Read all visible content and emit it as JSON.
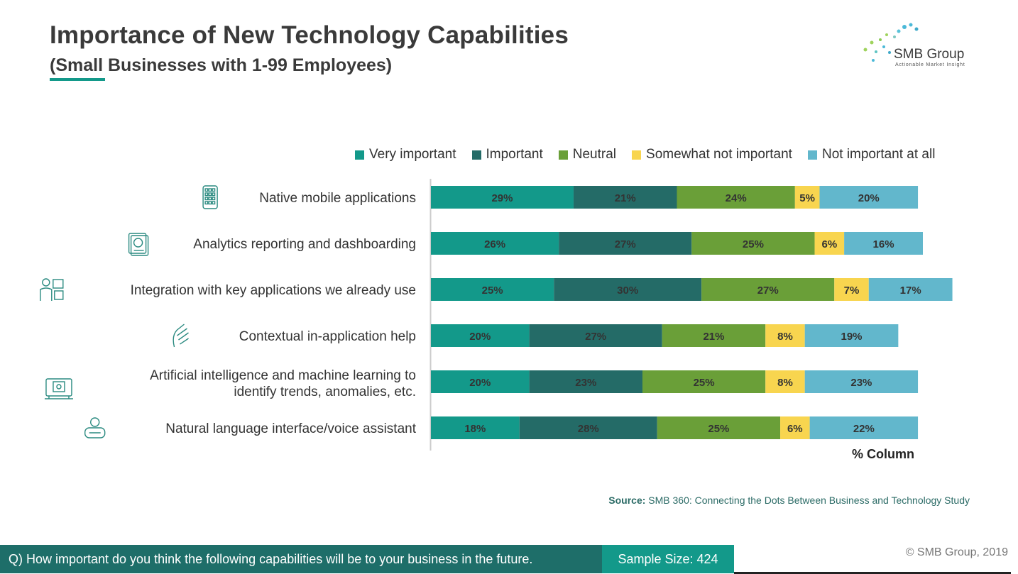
{
  "header": {
    "title": "Importance of New Technology Capabilities",
    "subtitle": "(Small Businesses with 1-99 Employees)"
  },
  "logo": {
    "name": "SMB Group",
    "tagline": "Actionable Market Insight"
  },
  "colors": {
    "very_important": "#13998a",
    "important": "#246b67",
    "neutral": "#6a9f38",
    "somewhat_not_important": "#f8d54f",
    "not_important_at_all": "#62b7cc",
    "accent": "#13998a"
  },
  "chart_data": {
    "type": "bar",
    "orientation": "horizontal",
    "stacked": true,
    "categories": [
      [
        "Native mobile applications"
      ],
      [
        "Analytics reporting and dashboarding"
      ],
      [
        "Integration with key applications we already use"
      ],
      [
        "Contextual in-application help"
      ],
      [
        "Artificial intelligence and machine learning to",
        "identify trends, anomalies, etc."
      ],
      [
        "Natural language interface/voice assistant"
      ]
    ],
    "category_icons": [
      "mobile-app-icon",
      "dashboard-icon",
      "integration-icon",
      "help-hand-icon",
      "ai-chip-icon",
      "voice-assistant-icon"
    ],
    "series": [
      {
        "name": "Very important",
        "values": [
          29,
          26,
          25,
          20,
          20,
          18
        ]
      },
      {
        "name": "Important",
        "values": [
          21,
          27,
          30,
          27,
          23,
          28
        ]
      },
      {
        "name": "Neutral",
        "values": [
          24,
          25,
          27,
          21,
          25,
          25
        ]
      },
      {
        "name": "Somewhat not important",
        "values": [
          5,
          6,
          7,
          8,
          8,
          6
        ]
      },
      {
        "name": "Not important at all",
        "values": [
          20,
          16,
          17,
          19,
          23,
          22
        ]
      }
    ],
    "value_suffix": "%",
    "xlabel": "% Column",
    "legend_position": "top",
    "grid": false
  },
  "source": {
    "label": "Source:",
    "text": "SMB 360: Connecting the Dots Between Business and Technology Study"
  },
  "footer": {
    "question": "Q) How important do you think the following capabilities will be to your business in the future.",
    "sample": "Sample Size: 424",
    "copyright": "© SMB Group, 2019"
  }
}
